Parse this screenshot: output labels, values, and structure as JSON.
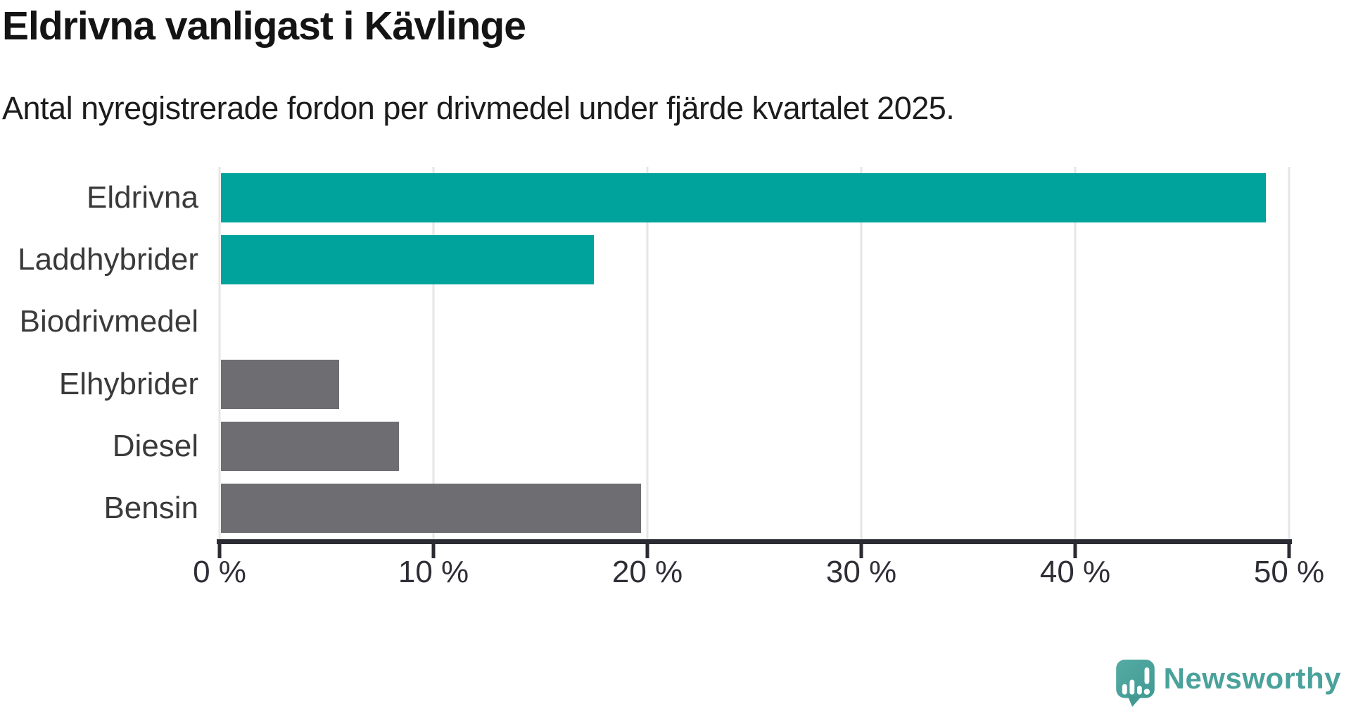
{
  "header": {
    "title": "Eldrivna vanligast i Kävlinge",
    "subtitle": "Antal nyregistrerade fordon per drivmedel under fjärde kvartalet 2025."
  },
  "chart_data": {
    "type": "bar",
    "orientation": "horizontal",
    "title": "Eldrivna vanligast i Kävlinge",
    "subtitle": "Antal nyregistrerade fordon per drivmedel under fjärde kvartalet 2025.",
    "categories": [
      "Eldrivna",
      "Laddhybrider",
      "Biodrivmedel",
      "Elhybrider",
      "Diesel",
      "Bensin"
    ],
    "values": [
      48.9,
      17.5,
      0,
      5.6,
      8.4,
      19.7
    ],
    "value_unit": "%",
    "xlim": [
      0,
      50
    ],
    "ticks": [
      0,
      10,
      20,
      30,
      40,
      50
    ],
    "tick_labels": [
      "0 %",
      "10 %",
      "20 %",
      "30 %",
      "40 %",
      "50 %"
    ],
    "bar_colors": [
      "#00a39b",
      "#00a39b",
      "#00a39b",
      "#6d6d72",
      "#6d6d72",
      "#6d6d72"
    ],
    "highlight_color": "#00a39b",
    "default_color": "#6d6d72",
    "grid": true,
    "legend": false,
    "xlabel": "",
    "ylabel": ""
  },
  "branding": {
    "wordmark": "Newsworthy",
    "logo_icon": "newsworthy-speech-bubble-chart-icon",
    "brand_color": "#4aa29b"
  },
  "colors": {
    "axis": "#2b2b33",
    "gridline": "#e6e6e6",
    "category_label": "#3a3a3a",
    "tick_label": "#2e2e36",
    "title": "#141414",
    "background": "#ffffff"
  }
}
